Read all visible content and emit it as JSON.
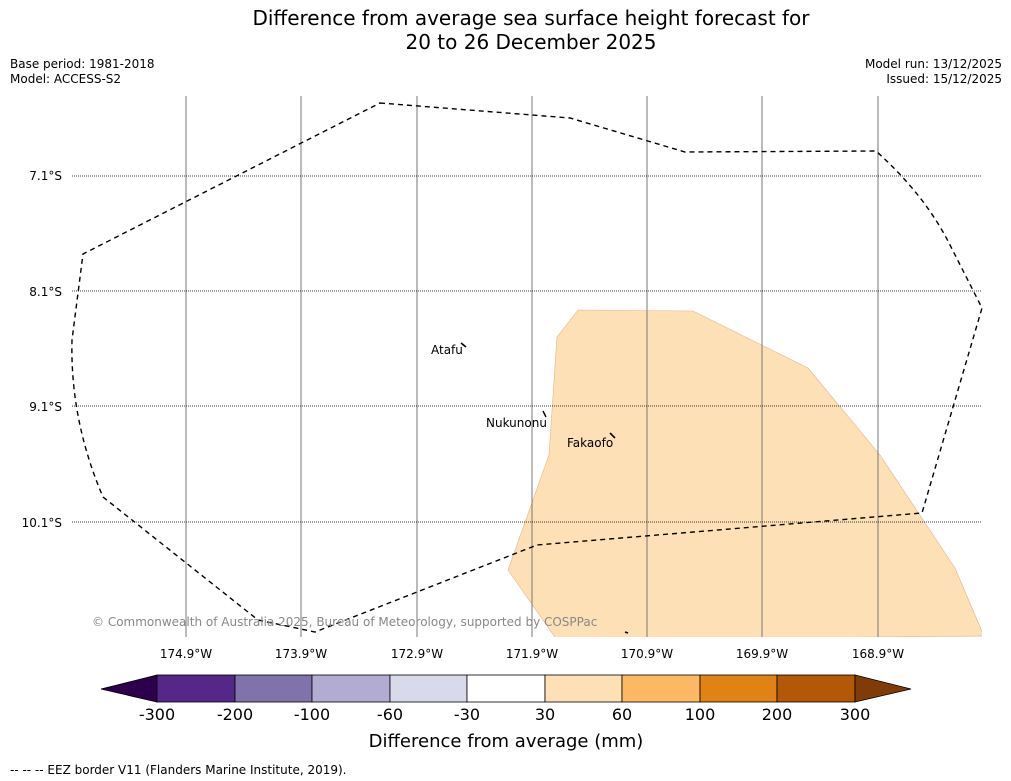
{
  "title": {
    "line1": "Difference from average sea surface height forecast for",
    "line2": "20 to 26 December 2025"
  },
  "meta": {
    "base_period": "Base period: 1981-2018",
    "model": "Model: ACCESS-S2",
    "model_run": "Model run: 13/12/2025",
    "issued": "Issued: 15/12/2025"
  },
  "map": {
    "lat_labels": [
      "7.1°S",
      "8.1°S",
      "9.1°S",
      "10.1°S"
    ],
    "lon_labels": [
      "174.9°W",
      "173.9°W",
      "172.9°W",
      "171.9°W",
      "170.9°W",
      "169.9°W",
      "168.9°W"
    ],
    "places": [
      "Atafu",
      "Nukunonu",
      "Fakaofo"
    ],
    "copyright": "© Commonwealth of Australia 2025, Bureau of Meteorology, supported by COSPPac"
  },
  "colorbar": {
    "label": "Difference from average (mm)",
    "ticks": [
      "-300",
      "-200",
      "-100",
      "-60",
      "-30",
      "30",
      "60",
      "100",
      "200",
      "300"
    ],
    "colors": [
      "#2d004b",
      "#542788",
      "#8073ac",
      "#b2abd2",
      "#d8daeb",
      "#ffffff",
      "#fee0b6",
      "#fdb863",
      "#e08214",
      "#b35806",
      "#7f3b08"
    ],
    "anomaly_fill": "#fde0b6"
  },
  "legend_footer": "--  --  -- EEZ border V11 (Flanders Marine Institute, 2019)."
}
